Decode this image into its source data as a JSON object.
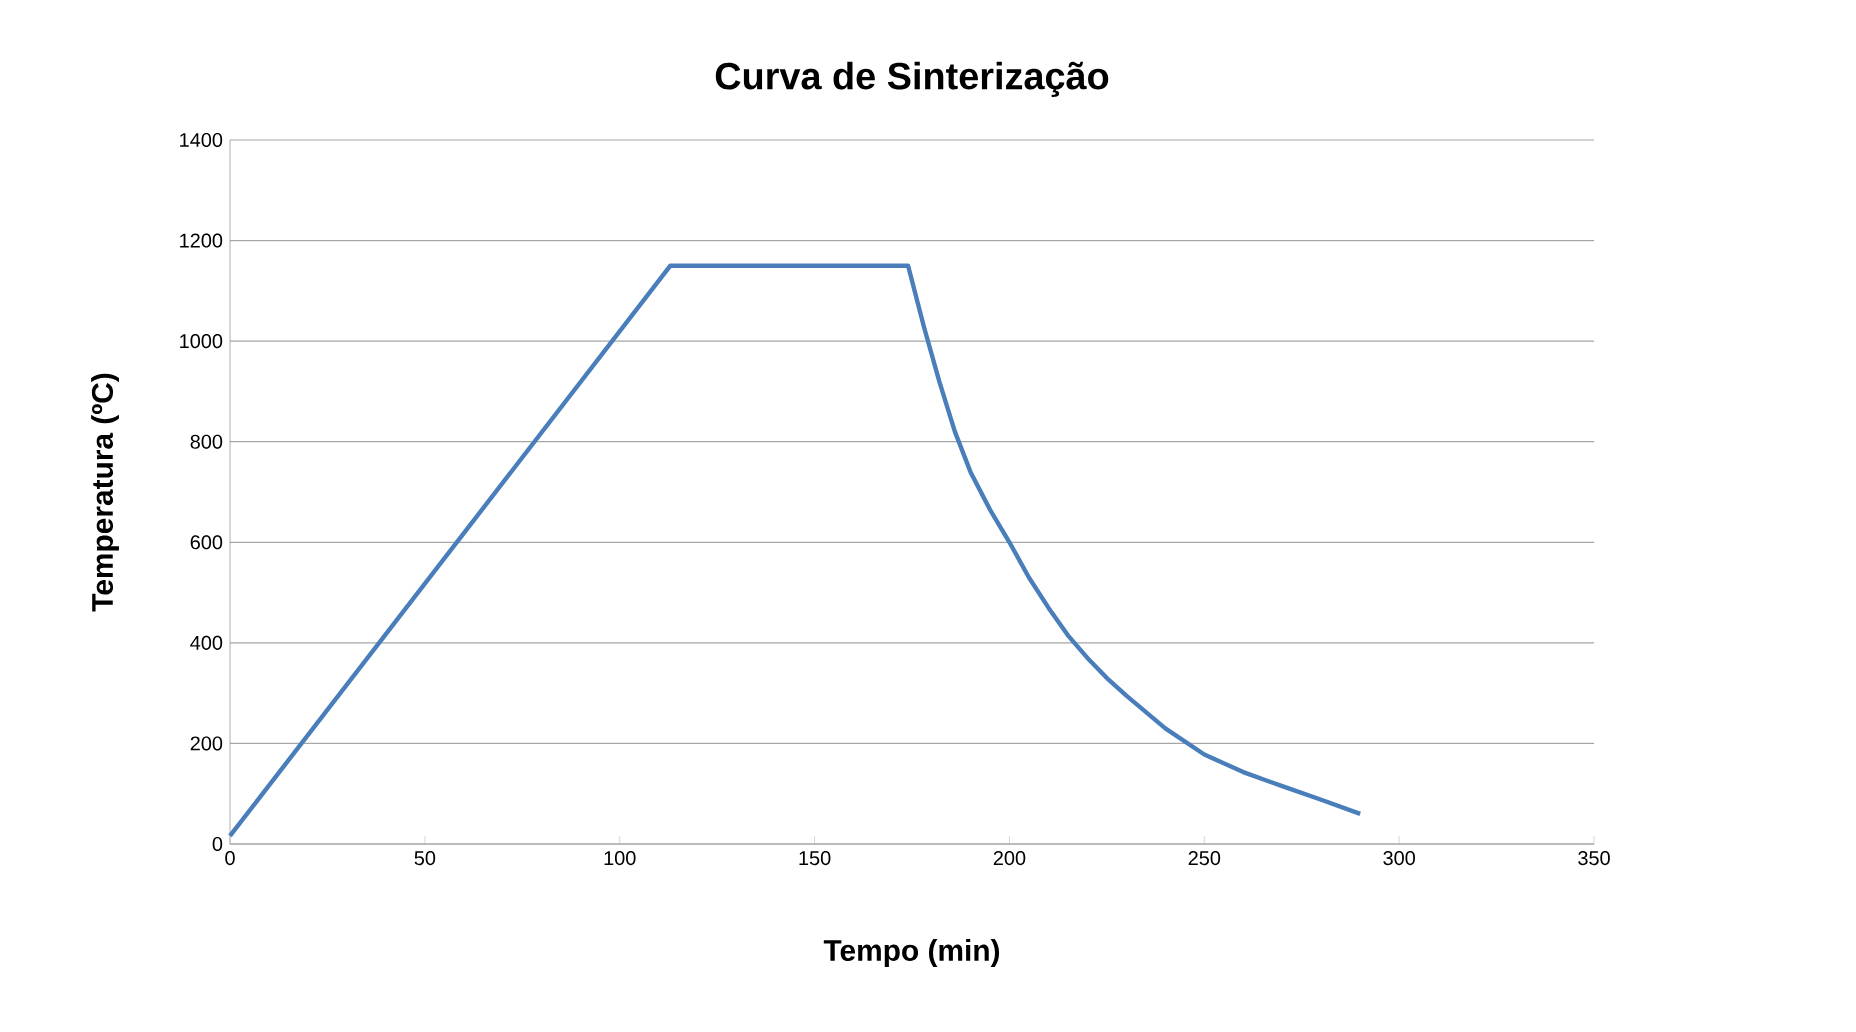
{
  "chart_data": {
    "type": "line",
    "title": "Curva de Sinterização",
    "xlabel": "Tempo (min)",
    "ylabel": "Temperatura (ºC)",
    "x": [
      0,
      113,
      174,
      178,
      182,
      186,
      190,
      195,
      200,
      205,
      210,
      215,
      220,
      225,
      230,
      240,
      250,
      260,
      270,
      280,
      290
    ],
    "series": [
      {
        "color": "#4a7ebb",
        "values": [
          16,
          1150,
          1150,
          1030,
          920,
          820,
          740,
          665,
          600,
          530,
          470,
          415,
          370,
          330,
          295,
          230,
          178,
          143,
          115,
          88,
          60
        ]
      }
    ],
    "xlim": [
      0,
      350
    ],
    "xticks": [
      0,
      50,
      100,
      150,
      200,
      250,
      300,
      350
    ],
    "ylim": [
      0,
      1400
    ],
    "yticks": [
      0,
      200,
      400,
      600,
      800,
      1000,
      1200,
      1400
    ],
    "grid": "y",
    "marker": "none",
    "line_style": "solid"
  }
}
